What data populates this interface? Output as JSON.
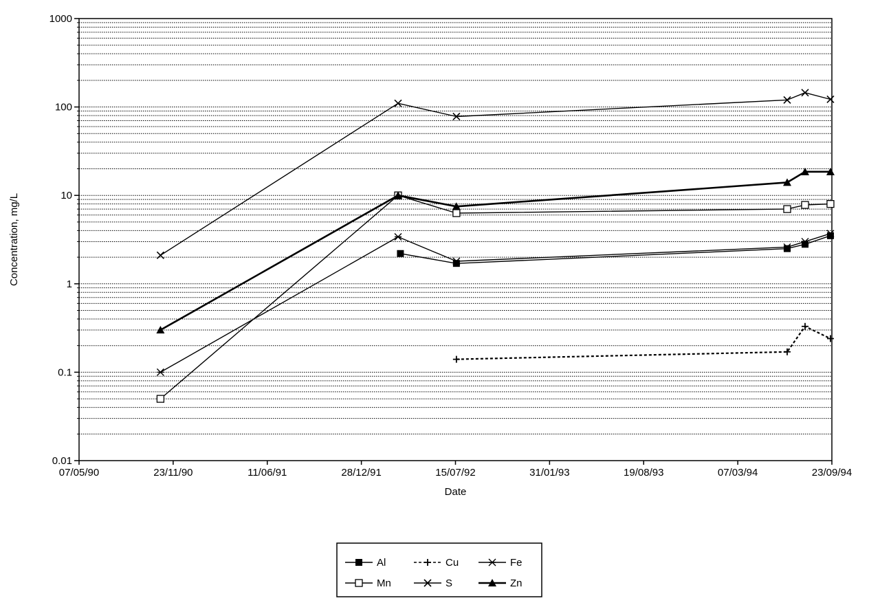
{
  "chart_data": {
    "type": "line",
    "title": "",
    "xlabel": "Date",
    "ylabel": "Concentration, mg/L",
    "yscale": "log",
    "ylim": [
      0.01,
      1000
    ],
    "xlim": [
      "1990-05-07",
      "1994-09-23"
    ],
    "x_tick_labels": [
      "07/05/90",
      "23/11/90",
      "11/06/91",
      "28/12/91",
      "15/07/92",
      "31/01/93",
      "19/08/93",
      "07/03/94",
      "23/09/94"
    ],
    "x_tick_dates": [
      "1990-05-07",
      "1990-11-23",
      "1991-06-11",
      "1991-12-28",
      "1992-07-15",
      "1993-01-31",
      "1993-08-19",
      "1994-03-07",
      "1994-09-23"
    ],
    "y_tick_labels": [
      "0.01",
      "0.1",
      "1",
      "10",
      "100",
      "1000"
    ],
    "y_tick_values": [
      0.01,
      0.1,
      1,
      10,
      100,
      1000
    ],
    "grid": "horizontal dotted at log minor intervals",
    "legend_position": "bottom-center",
    "series": [
      {
        "name": "Al",
        "marker": "filled-square",
        "dash": "solid",
        "x": [
          "1992-03-20",
          "1992-07-17",
          "1994-06-20",
          "1994-07-28",
          "1994-09-20"
        ],
        "y": [
          2.2,
          1.7,
          2.5,
          2.8,
          3.5
        ]
      },
      {
        "name": "Cu",
        "marker": "plus",
        "dash": "dashed",
        "x": [
          "1992-07-17",
          "1994-06-20",
          "1994-07-28",
          "1994-09-20"
        ],
        "y": [
          0.14,
          0.17,
          0.33,
          0.24
        ]
      },
      {
        "name": "Fe",
        "marker": "star",
        "dash": "solid",
        "x": [
          "1990-10-27",
          "1992-03-15",
          "1992-07-17",
          "1994-06-20",
          "1994-07-28",
          "1994-09-20"
        ],
        "y": [
          0.1,
          3.4,
          1.8,
          2.6,
          3.0,
          3.7
        ]
      },
      {
        "name": "Mn",
        "marker": "open-square",
        "dash": "solid",
        "x": [
          "1990-10-27",
          "1992-03-15",
          "1992-07-17",
          "1994-06-20",
          "1994-07-28",
          "1994-09-20"
        ],
        "y": [
          0.05,
          10.0,
          6.3,
          7.0,
          7.8,
          8.0
        ]
      },
      {
        "name": "S",
        "marker": "x",
        "dash": "solid",
        "x": [
          "1990-10-27",
          "1992-03-15",
          "1992-07-17",
          "1994-06-20",
          "1994-07-28",
          "1994-09-20"
        ],
        "y": [
          2.1,
          110,
          78,
          120,
          145,
          122
        ]
      },
      {
        "name": "Zn",
        "marker": "filled-triangle",
        "dash": "solid",
        "x": [
          "1990-10-27",
          "1992-03-15",
          "1992-07-17",
          "1994-06-20",
          "1994-07-28",
          "1994-09-20"
        ],
        "y": [
          0.3,
          10.0,
          7.5,
          14.0,
          18.5,
          18.5
        ]
      }
    ]
  }
}
